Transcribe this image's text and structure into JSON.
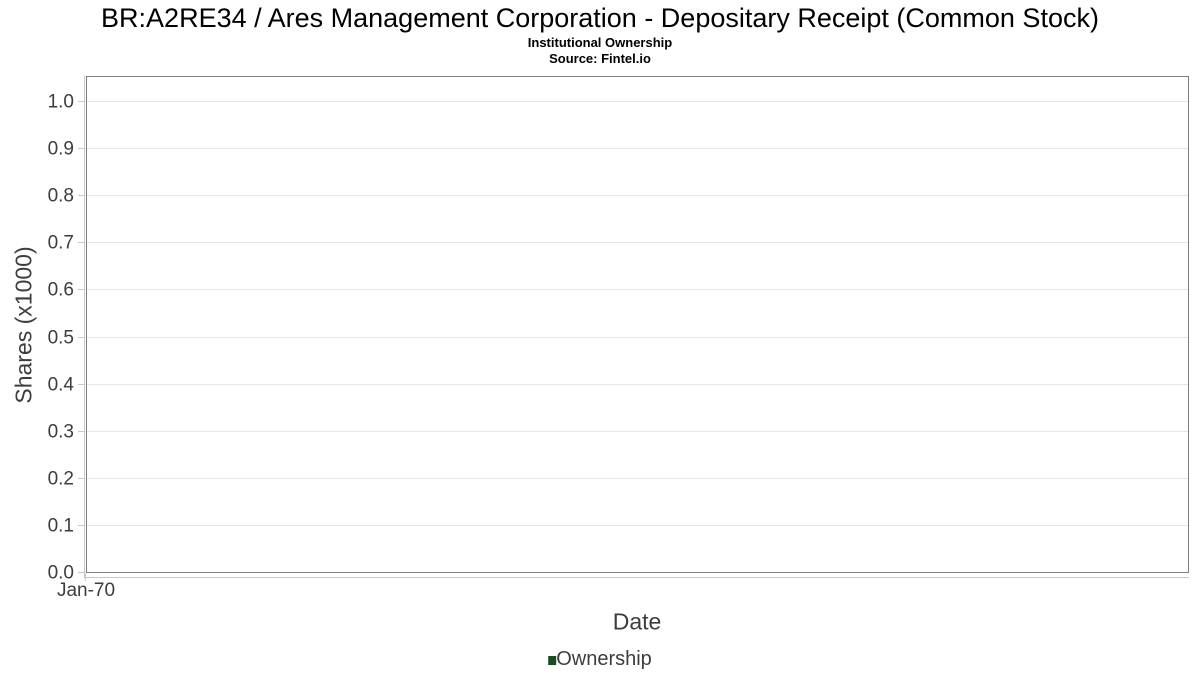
{
  "header": {
    "title": "BR:A2RE34 / Ares Management Corporation - Depositary Receipt (Common Stock)",
    "subtitle": "Institutional Ownership",
    "source": "Source: Fintel.io"
  },
  "chart_data": {
    "type": "line",
    "title": "BR:A2RE34 / Ares Management Corporation - Depositary Receipt (Common Stock)",
    "subtitle": "Institutional Ownership",
    "source": "Source: Fintel.io",
    "xlabel": "Date",
    "ylabel": "Shares (x1000)",
    "x_ticks": [
      "Jan-70"
    ],
    "y_ticks": [
      0.0,
      0.1,
      0.2,
      0.3,
      0.4,
      0.5,
      0.6,
      0.7,
      0.8,
      0.9,
      1.0
    ],
    "ylim": [
      0,
      1.055
    ],
    "grid": "horizontal-only",
    "legend": {
      "position": "bottom-center",
      "entries": [
        {
          "label": "Ownership",
          "color": "#1c4a24"
        }
      ]
    },
    "series": [
      {
        "name": "Ownership",
        "x": [],
        "y": []
      }
    ],
    "plot_empty": true
  },
  "colors": {
    "accent_green": "#1c4a24",
    "plot_border": "#7d7d7d",
    "gridline": "#e5e5e5",
    "axis_line": "#c8c8c8",
    "axis_text": "#3d3d3d",
    "title_text": "#000000"
  }
}
